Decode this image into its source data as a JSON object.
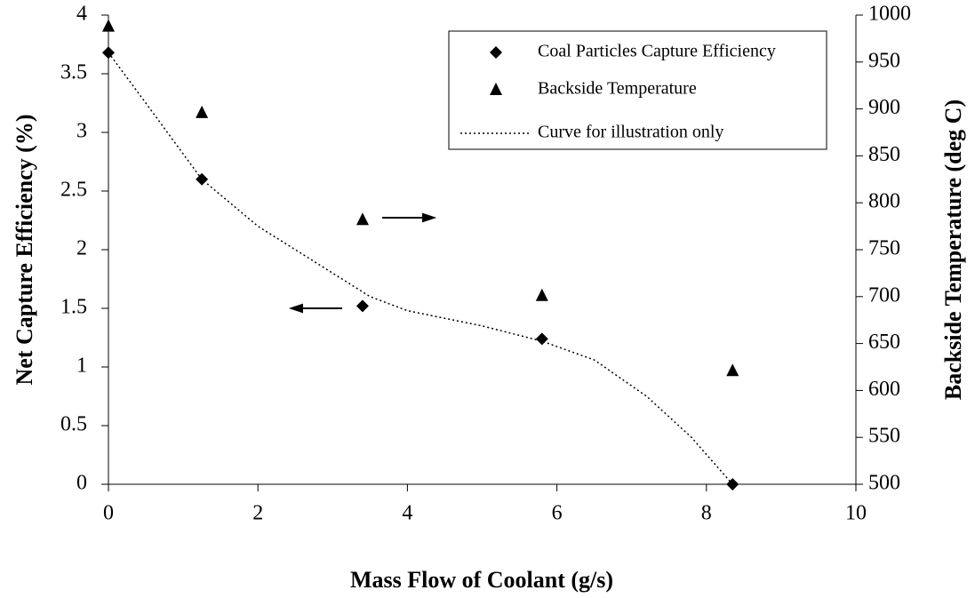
{
  "chart_data": {
    "type": "scatter",
    "xlabel": "Mass Flow of Coolant (g/s)",
    "ylabel": "Net Capture Efficiency (%)",
    "y2label": "Backside Temperature (deg C)",
    "xlim": [
      0,
      10
    ],
    "xticks": [
      0,
      2,
      4,
      6,
      8,
      10
    ],
    "ylim": [
      0,
      4
    ],
    "yticks": [
      0,
      0.5,
      1,
      1.5,
      2,
      2.5,
      3,
      3.5,
      4
    ],
    "y2lim": [
      500,
      1000
    ],
    "y2ticks": [
      500,
      550,
      600,
      650,
      700,
      750,
      800,
      850,
      900,
      950,
      1000
    ],
    "legend": "upper right",
    "series": [
      {
        "name": "Coal Particles Capture Efficiency",
        "color": "#000000",
        "marker": "diamond",
        "x": [
          0,
          1.25,
          3.4,
          5.8,
          8.35
        ],
        "values": [
          3.68,
          2.6,
          1.52,
          1.24,
          0
        ]
      },
      {
        "name": "Backside Temperature",
        "color": "#000000",
        "marker": "triangle",
        "axis": "y2",
        "x": [
          0,
          1.25,
          3.4,
          5.8,
          8.35
        ],
        "values": [
          988,
          896,
          782,
          701,
          621
        ]
      },
      {
        "name": "Curve for illustration only",
        "color": "#000000",
        "marker": "dotted",
        "x": [
          0,
          0.5,
          1.25,
          2,
          3,
          3.5,
          4,
          5,
          5.8,
          6.5,
          7.2,
          7.8,
          8.35
        ],
        "values": [
          3.68,
          3.25,
          2.6,
          2.2,
          1.8,
          1.6,
          1.48,
          1.35,
          1.22,
          1.06,
          0.75,
          0.4,
          0
        ]
      }
    ]
  }
}
